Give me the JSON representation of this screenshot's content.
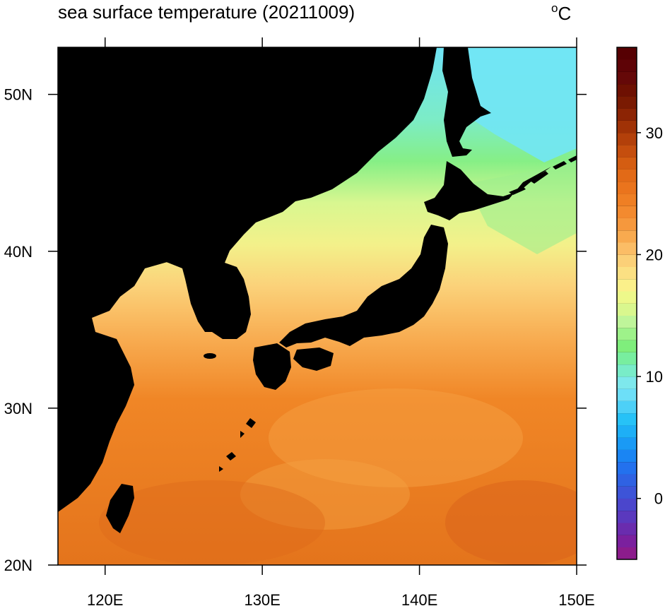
{
  "header": {
    "title": "sea surface temperature (20211009)",
    "unit_symbol": "o",
    "unit_letter": "C"
  },
  "map": {
    "lon_range": [
      117,
      150
    ],
    "lat_range": [
      20,
      53
    ],
    "lon_ticks": [
      {
        "value": 120,
        "label": "120E"
      },
      {
        "value": 130,
        "label": "130E"
      },
      {
        "value": 140,
        "label": "140E"
      },
      {
        "value": 150,
        "label": "150E"
      }
    ],
    "lat_ticks": [
      {
        "value": 50,
        "label": "50N"
      },
      {
        "value": 40,
        "label": "40N"
      },
      {
        "value": 30,
        "label": "30N"
      },
      {
        "value": 20,
        "label": "20N"
      }
    ],
    "land_color": "#000000",
    "sst_pattern": [
      {
        "region": "Okhotsk Sea / NE",
        "approx_celsius": 11
      },
      {
        "region": "Sea of Japan north",
        "approx_celsius": 17
      },
      {
        "region": "Yellow Sea / Sea of Japan south",
        "approx_celsius": 22
      },
      {
        "region": "East China Sea",
        "approx_celsius": 27
      },
      {
        "region": "Subtropical Pacific",
        "approx_celsius": 29
      }
    ]
  },
  "colorbar": {
    "min": -5,
    "max": 37,
    "ticks": [
      {
        "value": 30,
        "label": "30"
      },
      {
        "value": 20,
        "label": "20"
      },
      {
        "value": 10,
        "label": "10"
      },
      {
        "value": 0,
        "label": "0"
      }
    ],
    "colors": [
      "#8c1c8c",
      "#7b209e",
      "#6a2cae",
      "#5a39be",
      "#4b46cc",
      "#3d54d8",
      "#2f62e3",
      "#2371ee",
      "#1a85f3",
      "#1a9af5",
      "#1eaff6",
      "#27c2f7",
      "#4dd0f7",
      "#6ddff8",
      "#7ee8ec",
      "#79ecc8",
      "#78ee9f",
      "#7fee7c",
      "#9ef28a",
      "#bff59a",
      "#d9f78e",
      "#edf88a",
      "#fbf08a",
      "#fbe083",
      "#fbd078",
      "#fbbd66",
      "#f8aa4f",
      "#f6983d",
      "#f38a2f",
      "#ef7f24",
      "#ea741d",
      "#e26a17",
      "#d45d12",
      "#c54e0e",
      "#b3400a",
      "#a03206",
      "#8c2404",
      "#7a1a02",
      "#6e1002",
      "#650808",
      "#5e0306",
      "#560002"
    ]
  }
}
